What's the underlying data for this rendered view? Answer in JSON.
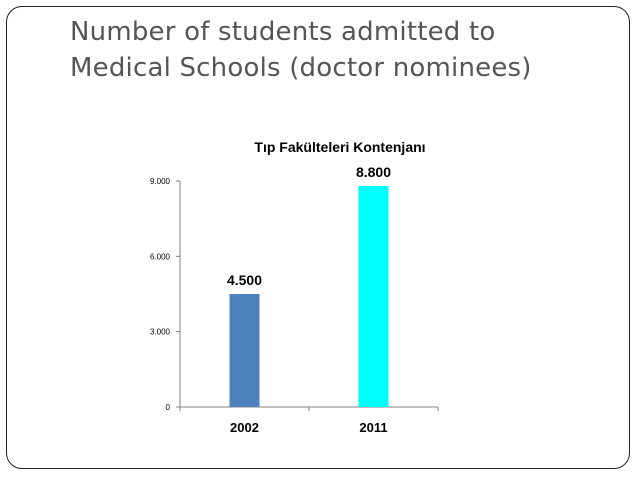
{
  "slide": {
    "title_line1": "Number of students admitted to",
    "title_line2": "Medical Schools (doctor nominees)"
  },
  "colors": {
    "frame": "#222222",
    "title": "#555555",
    "axis": "#808080"
  },
  "chart_data": {
    "type": "bar",
    "title": "Tıp Fakülteleri Kontenjanı",
    "categories": [
      "2002",
      "2011"
    ],
    "values": [
      4500,
      8800
    ],
    "data_labels": [
      "4.500",
      "8.800"
    ],
    "bar_colors": [
      "#4F81BD",
      "#00FFFF"
    ],
    "ylim": [
      0,
      9000
    ],
    "yticks": [
      0,
      3000,
      6000,
      9000
    ],
    "ytick_labels": [
      "0",
      "3.000",
      "6.000",
      "9.000"
    ],
    "xlabel": "",
    "ylabel": "",
    "grid": false,
    "legend": "none"
  }
}
